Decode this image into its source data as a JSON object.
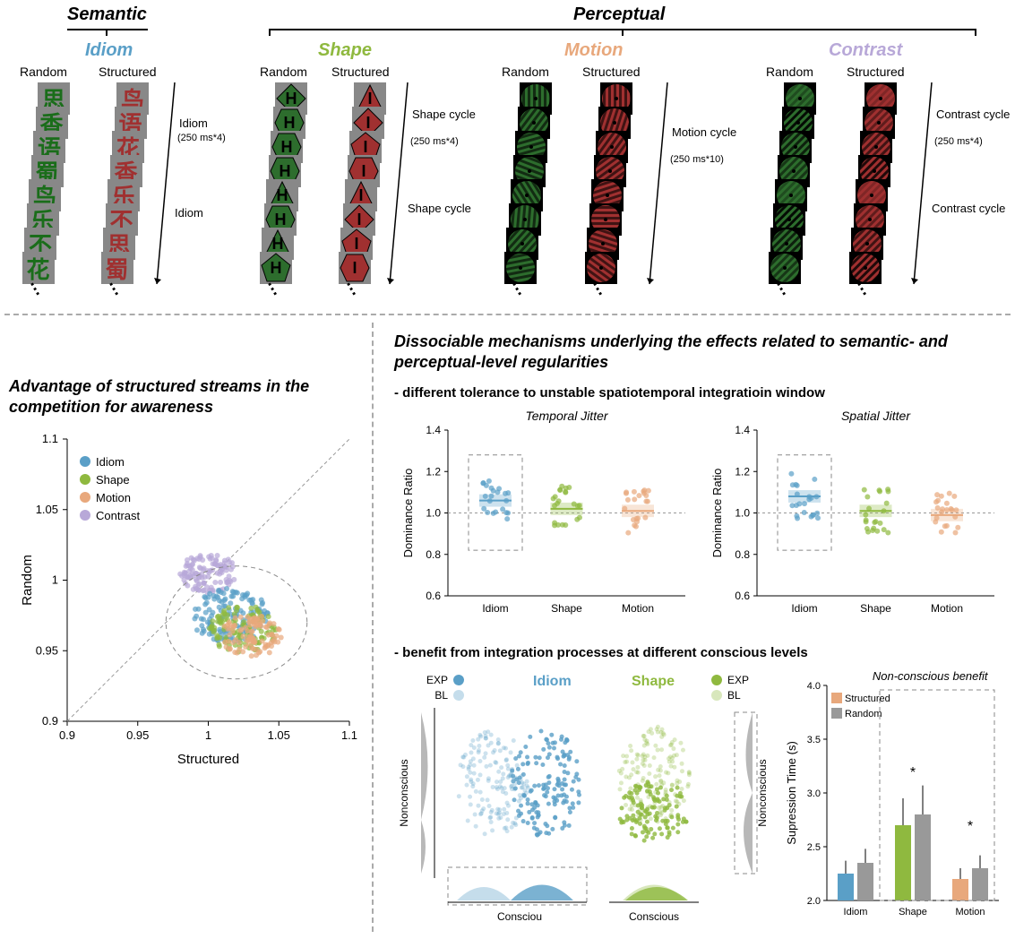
{
  "colors": {
    "idiom": "#5a9fc7",
    "shape": "#8fb93f",
    "motion": "#e8a87c",
    "contrast": "#b8a8d8",
    "green_stim": "#2d6d2d",
    "red_stim": "#a03030",
    "gray_bg": "#888888",
    "dash": "#999999"
  },
  "top": {
    "semantic_label": "Semantic",
    "perceptual_label": "Perceptual",
    "conditions": {
      "idiom": {
        "label": "Idiom",
        "color": "#5a9fc7",
        "random": "Random",
        "structured": "Structured",
        "cycle1": "Idiom",
        "cycle1_sub": "(250 ms*4)",
        "cycle2": "Idiom"
      },
      "shape": {
        "label": "Shape",
        "color": "#8fb93f",
        "random": "Random",
        "structured": "Structured",
        "cycle1": "Shape cycle",
        "cycle1_sub": "(250 ms*4)",
        "cycle2": "Shape cycle"
      },
      "motion": {
        "label": "Motion",
        "color": "#e8a87c",
        "random": "Random",
        "structured": "Structured",
        "cycle1": "Motion cycle",
        "cycle1_sub": "(250 ms*10)",
        "cycle2": ""
      },
      "contrast": {
        "label": "Contrast",
        "color": "#b8a8d8",
        "random": "Random",
        "structured": "Structured",
        "cycle1": "Contrast cycle",
        "cycle1_sub": "(250 ms*4)",
        "cycle2": "Contrast cycle"
      }
    },
    "idiom_chars_random": [
      "思",
      "香",
      "语",
      "蜀",
      "鸟",
      "乐",
      "不",
      "花"
    ],
    "idiom_chars_struct": [
      "鸟",
      "语",
      "花",
      "香",
      "乐",
      "不",
      "思",
      "蜀"
    ]
  },
  "scatter": {
    "title": "Advantage of structured streams in the competition for awareness",
    "xlabel": "Structured",
    "ylabel": "Random",
    "xlim": [
      0.9,
      1.1
    ],
    "ylim": [
      0.9,
      1.1
    ],
    "ticks": [
      0.9,
      0.95,
      1.0,
      1.05,
      1.1
    ],
    "legend": [
      "Idiom",
      "Shape",
      "Motion",
      "Contrast"
    ],
    "legend_colors": [
      "#5a9fc7",
      "#8fb93f",
      "#e8a87c",
      "#b8a8d8"
    ]
  },
  "right_title": "Dissociable mechanisms underlying the effects related to semantic- and perceptual-level regularities",
  "jitter": {
    "subtitle": "- different tolerance to unstable spatiotemporal integratioin window",
    "titles": [
      "Temporal Jitter",
      "Spatial Jitter"
    ],
    "ylabel": "Dominance Ratio",
    "categories": [
      "Idiom",
      "Shape",
      "Motion"
    ],
    "ylim": [
      0.6,
      1.4
    ],
    "yticks": [
      0.6,
      0.8,
      1.0,
      1.2,
      1.4
    ],
    "colors": [
      "#5a9fc7",
      "#8fb93f",
      "#e8a87c"
    ],
    "temporal_means": [
      1.06,
      1.02,
      1.01
    ],
    "spatial_means": [
      1.08,
      1.01,
      0.99
    ]
  },
  "conscious": {
    "subtitle": "- benefit from integration processes at different conscious levels",
    "labels": {
      "idiom": "Idiom",
      "shape": "Shape",
      "exp": "EXP",
      "bl": "BL",
      "nonconscious": "Nonconscious",
      "conscious": "Conscious",
      "consciou": "Consciou"
    }
  },
  "bar": {
    "title": "Non-conscious benefit",
    "ylabel": "Supression Time (s)",
    "categories": [
      "Idiom",
      "Shape",
      "Motion"
    ],
    "ylim": [
      2.0,
      4.0
    ],
    "yticks": [
      2.0,
      2.5,
      3.0,
      3.5,
      4.0
    ],
    "legend": [
      "Structured",
      "Random"
    ],
    "legend_colors": [
      "#e8a87c",
      "#999999"
    ],
    "structured": [
      2.25,
      2.7,
      2.2
    ],
    "random": [
      2.35,
      2.8,
      2.3
    ],
    "struct_err": [
      0.12,
      0.25,
      0.1
    ],
    "rand_err": [
      0.13,
      0.27,
      0.12
    ],
    "struct_colors": [
      "#5a9fc7",
      "#8fb93f",
      "#e8a87c"
    ],
    "rand_color": "#999999",
    "stars": [
      "",
      "*",
      "*"
    ]
  }
}
